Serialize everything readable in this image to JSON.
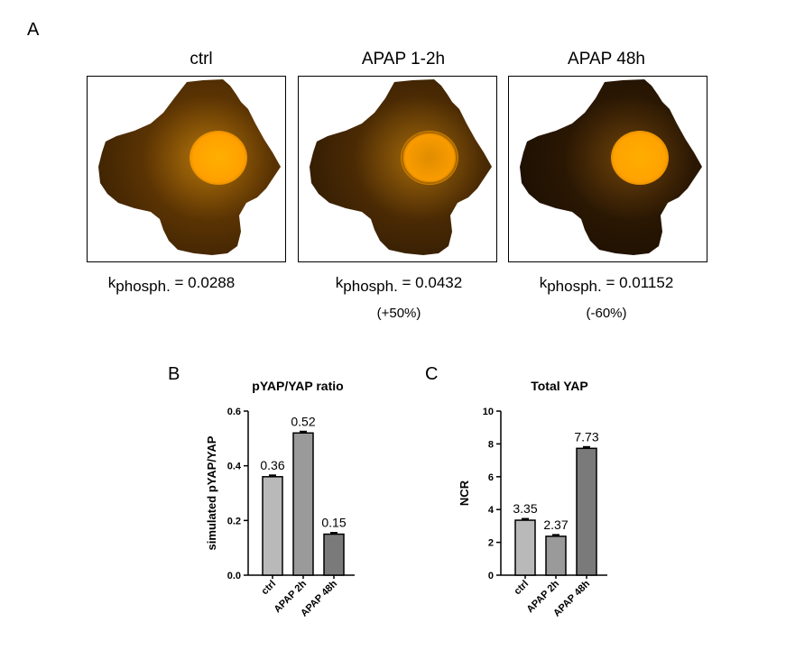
{
  "panel_labels": {
    "a": "A",
    "b": "B",
    "c": "C"
  },
  "cells": [
    {
      "title": "ctrl",
      "k_symbol": "k",
      "k_sub": "phosph.",
      "k_value": "= 0.0288",
      "delta": "",
      "nucleus_color": "#ffa000",
      "cyto_color": "#5a3303"
    },
    {
      "title": "APAP 1-2h",
      "k_symbol": "k",
      "k_sub": "phosph.",
      "k_value": "= 0.0432",
      "delta": "(+50%)",
      "nucleus_color": "#f99b00",
      "cyto_color": "#4a2a04"
    },
    {
      "title": "APAP 48h",
      "k_symbol": "k",
      "k_sub": "phosph.",
      "k_value": "= 0.01152",
      "delta": "(-60%)",
      "nucleus_color": "#ffa200",
      "cyto_color": "#2a1703"
    }
  ],
  "chart_data": [
    {
      "type": "bar",
      "title": "pYAP/YAP ratio",
      "ylabel": "simulated pYAP/YAP",
      "categories": [
        "ctrl",
        "APAP 2h",
        "APAP 48h"
      ],
      "values": [
        0.36,
        0.52,
        0.15
      ],
      "value_labels": [
        "0.36",
        "0.52",
        "0.15"
      ],
      "ylim": [
        0,
        0.6
      ],
      "yticks": [
        0.0,
        0.2,
        0.4,
        0.6
      ],
      "ytick_labels": [
        "0.0",
        "0.2",
        "0.4",
        "0.6"
      ],
      "bar_colors": [
        "#b9b9b9",
        "#9a9a9a",
        "#7a7a7a"
      ]
    },
    {
      "type": "bar",
      "title": "Total YAP",
      "ylabel": "NCR",
      "categories": [
        "ctrl",
        "APAP 2h",
        "APAP 48h"
      ],
      "values": [
        3.35,
        2.37,
        7.73
      ],
      "value_labels": [
        "3.35",
        "2.37",
        "7.73"
      ],
      "ylim": [
        0,
        10
      ],
      "yticks": [
        0,
        2,
        4,
        6,
        8,
        10
      ],
      "ytick_labels": [
        "0",
        "2",
        "4",
        "6",
        "8",
        "10"
      ],
      "bar_colors": [
        "#b9b9b9",
        "#9a9a9a",
        "#7a7a7a"
      ]
    }
  ]
}
